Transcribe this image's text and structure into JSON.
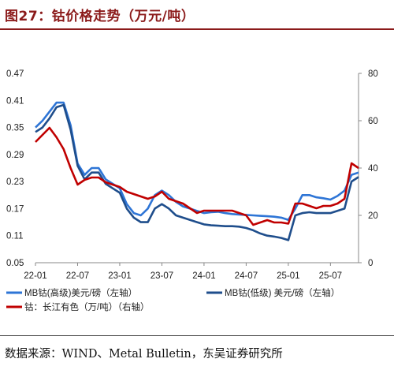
{
  "title": "图27：钴价格走势（万元/吨）",
  "source": "数据来源：WIND、Metal Bulletin，东吴证券研究所",
  "chart_data": {
    "type": "line",
    "x_start": "2022-01",
    "x_end": "2025-11",
    "x_tick_labels": [
      "22-01",
      "22-07",
      "23-01",
      "23-07",
      "24-01",
      "24-07",
      "25-01",
      "25-07"
    ],
    "y_left": {
      "lim": [
        0.05,
        0.47
      ],
      "ticks": [
        0.05,
        0.11,
        0.17,
        0.23,
        0.29,
        0.35,
        0.41,
        0.47
      ],
      "tick_labels": [
        "0.05",
        "0.11",
        "0.17",
        "0.23",
        "0.29",
        "0.35",
        "0.41",
        "0.47"
      ]
    },
    "y_right": {
      "lim": [
        0,
        80
      ],
      "ticks": [
        0,
        20,
        40,
        60,
        80
      ],
      "tick_labels": [
        "0",
        "20",
        "40",
        "60",
        "80"
      ]
    },
    "legend_position": "bottom",
    "series": [
      {
        "name": "MB钴(高级)美元/磅（左轴）",
        "axis": "left",
        "color": "#2e75d6",
        "points": [
          [
            "2022-01",
            0.35
          ],
          [
            "2022-02",
            0.365
          ],
          [
            "2022-03",
            0.385
          ],
          [
            "2022-04",
            0.405
          ],
          [
            "2022-05",
            0.405
          ],
          [
            "2022-06",
            0.355
          ],
          [
            "2022-07",
            0.27
          ],
          [
            "2022-08",
            0.245
          ],
          [
            "2022-09",
            0.26
          ],
          [
            "2022-10",
            0.26
          ],
          [
            "2022-11",
            0.235
          ],
          [
            "2022-12",
            0.225
          ],
          [
            "2023-01",
            0.215
          ],
          [
            "2023-02",
            0.18
          ],
          [
            "2023-03",
            0.16
          ],
          [
            "2023-04",
            0.155
          ],
          [
            "2023-05",
            0.17
          ],
          [
            "2023-06",
            0.2
          ],
          [
            "2023-07",
            0.21
          ],
          [
            "2023-08",
            0.2
          ],
          [
            "2023-09",
            0.185
          ],
          [
            "2023-10",
            0.175
          ],
          [
            "2023-11",
            0.17
          ],
          [
            "2023-12",
            0.165
          ],
          [
            "2024-01",
            0.16
          ],
          [
            "2024-02",
            0.162
          ],
          [
            "2024-03",
            0.163
          ],
          [
            "2024-04",
            0.16
          ],
          [
            "2024-05",
            0.158
          ],
          [
            "2024-06",
            0.157
          ],
          [
            "2024-07",
            0.156
          ],
          [
            "2024-08",
            0.155
          ],
          [
            "2024-09",
            0.154
          ],
          [
            "2024-10",
            0.153
          ],
          [
            "2024-11",
            0.152
          ],
          [
            "2024-12",
            0.15
          ],
          [
            "2025-01",
            0.145
          ],
          [
            "2025-02",
            0.17
          ],
          [
            "2025-03",
            0.2
          ],
          [
            "2025-04",
            0.2
          ],
          [
            "2025-05",
            0.195
          ],
          [
            "2025-06",
            0.193
          ],
          [
            "2025-07",
            0.19
          ],
          [
            "2025-08",
            0.198
          ],
          [
            "2025-09",
            0.21
          ],
          [
            "2025-10",
            0.245
          ],
          [
            "2025-11",
            0.25
          ]
        ]
      },
      {
        "name": "MB钴(低级) 美元/磅（左轴）",
        "axis": "left",
        "color": "#1f4e8c",
        "points": [
          [
            "2022-01",
            0.34
          ],
          [
            "2022-02",
            0.35
          ],
          [
            "2022-03",
            0.37
          ],
          [
            "2022-04",
            0.395
          ],
          [
            "2022-05",
            0.4
          ],
          [
            "2022-06",
            0.345
          ],
          [
            "2022-07",
            0.265
          ],
          [
            "2022-08",
            0.235
          ],
          [
            "2022-09",
            0.25
          ],
          [
            "2022-10",
            0.25
          ],
          [
            "2022-11",
            0.225
          ],
          [
            "2022-12",
            0.215
          ],
          [
            "2023-01",
            0.205
          ],
          [
            "2023-02",
            0.17
          ],
          [
            "2023-03",
            0.15
          ],
          [
            "2023-04",
            0.14
          ],
          [
            "2023-05",
            0.14
          ],
          [
            "2023-06",
            0.17
          ],
          [
            "2023-07",
            0.18
          ],
          [
            "2023-08",
            0.17
          ],
          [
            "2023-09",
            0.155
          ],
          [
            "2023-10",
            0.15
          ],
          [
            "2023-11",
            0.145
          ],
          [
            "2023-12",
            0.14
          ],
          [
            "2024-01",
            0.135
          ],
          [
            "2024-02",
            0.133
          ],
          [
            "2024-03",
            0.132
          ],
          [
            "2024-04",
            0.131
          ],
          [
            "2024-05",
            0.131
          ],
          [
            "2024-06",
            0.13
          ],
          [
            "2024-07",
            0.127
          ],
          [
            "2024-08",
            0.122
          ],
          [
            "2024-09",
            0.115
          ],
          [
            "2024-10",
            0.11
          ],
          [
            "2024-11",
            0.108
          ],
          [
            "2024-12",
            0.105
          ],
          [
            "2025-01",
            0.1
          ],
          [
            "2025-02",
            0.155
          ],
          [
            "2025-03",
            0.16
          ],
          [
            "2025-04",
            0.162
          ],
          [
            "2025-05",
            0.16
          ],
          [
            "2025-06",
            0.16
          ],
          [
            "2025-07",
            0.16
          ],
          [
            "2025-08",
            0.165
          ],
          [
            "2025-09",
            0.17
          ],
          [
            "2025-10",
            0.23
          ],
          [
            "2025-11",
            0.24
          ]
        ]
      },
      {
        "name": "钴：长江有色（万/吨）（右轴）",
        "axis": "right",
        "color": "#c00000",
        "points": [
          [
            "2022-01",
            51
          ],
          [
            "2022-02",
            54
          ],
          [
            "2022-03",
            57
          ],
          [
            "2022-04",
            53
          ],
          [
            "2022-05",
            48
          ],
          [
            "2022-06",
            40
          ],
          [
            "2022-07",
            33
          ],
          [
            "2022-08",
            35
          ],
          [
            "2022-09",
            36
          ],
          [
            "2022-10",
            36
          ],
          [
            "2022-11",
            34
          ],
          [
            "2022-12",
            33
          ],
          [
            "2023-01",
            32
          ],
          [
            "2023-02",
            30
          ],
          [
            "2023-03",
            29
          ],
          [
            "2023-04",
            28
          ],
          [
            "2023-05",
            27
          ],
          [
            "2023-06",
            28
          ],
          [
            "2023-07",
            30
          ],
          [
            "2023-08",
            27
          ],
          [
            "2023-09",
            26
          ],
          [
            "2023-10",
            25
          ],
          [
            "2023-11",
            23
          ],
          [
            "2023-12",
            21
          ],
          [
            "2024-01",
            22
          ],
          [
            "2024-02",
            22
          ],
          [
            "2024-03",
            22
          ],
          [
            "2024-04",
            22
          ],
          [
            "2024-05",
            22
          ],
          [
            "2024-06",
            21
          ],
          [
            "2024-07",
            20
          ],
          [
            "2024-08",
            16
          ],
          [
            "2024-09",
            17
          ],
          [
            "2024-10",
            18
          ],
          [
            "2024-11",
            17
          ],
          [
            "2024-12",
            17
          ],
          [
            "2025-01",
            16.5
          ],
          [
            "2025-02",
            25
          ],
          [
            "2025-03",
            25
          ],
          [
            "2025-04",
            24
          ],
          [
            "2025-05",
            23
          ],
          [
            "2025-06",
            24
          ],
          [
            "2025-07",
            24
          ],
          [
            "2025-08",
            25
          ],
          [
            "2025-09",
            27
          ],
          [
            "2025-10",
            42
          ],
          [
            "2025-11",
            40
          ]
        ]
      }
    ]
  }
}
